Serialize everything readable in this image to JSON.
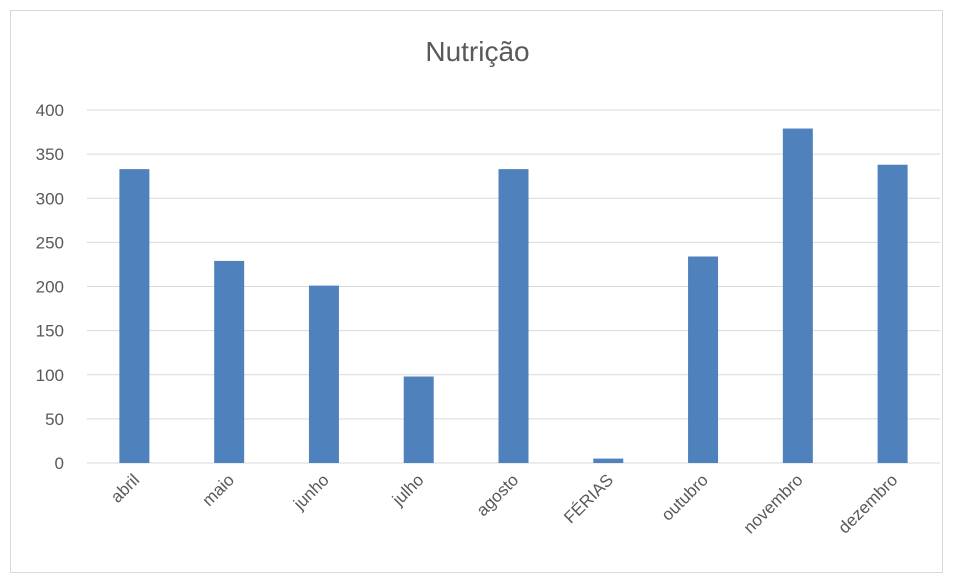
{
  "chart_data": {
    "type": "bar",
    "title": "Nutrição",
    "categories": [
      "abril",
      "maio",
      "junho",
      "julho",
      "agosto",
      "FÉRIAS",
      "outubro",
      "novembro",
      "dezembro"
    ],
    "series": [
      {
        "values": [
          333,
          229,
          201,
          98,
          333,
          5,
          234,
          379,
          338
        ]
      }
    ],
    "ylim": [
      0,
      400
    ],
    "yticks": [
      0,
      50,
      100,
      150,
      200,
      250,
      300,
      350,
      400
    ],
    "grid": true,
    "legend": "none",
    "bar_color": "#4f81bd",
    "grid_color": "#d9d9d9"
  }
}
